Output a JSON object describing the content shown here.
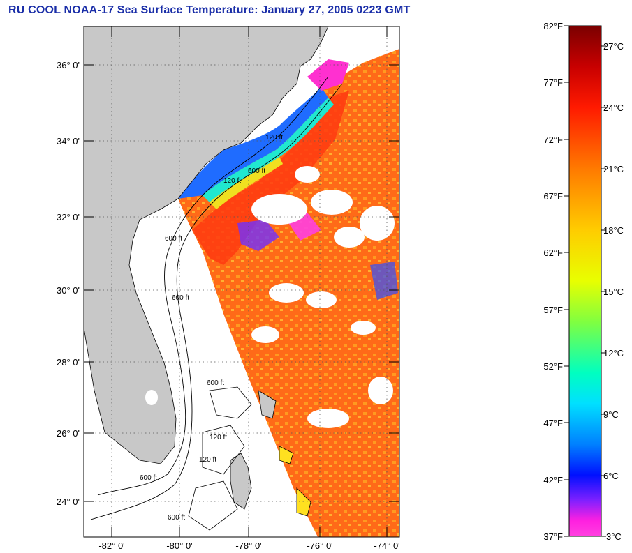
{
  "title": "RU COOL  NOAA-17  Sea Surface Temperature:  January 27, 2005 0223 GMT",
  "map": {
    "lat_ticks": [
      "36° 0'",
      "34° 0'",
      "32° 0'",
      "30° 0'",
      "28° 0'",
      "26° 0'",
      "24° 0'"
    ],
    "lon_ticks": [
      "-82° 0'",
      "-80° 0'",
      "-78° 0'",
      "-76° 0'",
      "-74° 0'"
    ],
    "contour_labels": [
      "120 ft",
      "600 ft",
      "120 ft",
      "600 ft",
      "600 ft",
      "120 ft",
      "600 ft",
      "600 ft",
      "120 ft",
      "600 ft"
    ]
  },
  "colorbar": {
    "fahrenheit": [
      "82°F",
      "77°F",
      "72°F",
      "67°F",
      "62°F",
      "57°F",
      "52°F",
      "47°F",
      "42°F",
      "37°F"
    ],
    "celsius": [
      "27°C",
      "24°C",
      "21°C",
      "18°C",
      "15°C",
      "12°C",
      "9°C",
      "6°C",
      "3°C"
    ]
  },
  "colors": {
    "title": "#1a2ea8",
    "land": "#c8c8c8",
    "warm_sst": "#ff5a10",
    "gulf_stream": "#ff3a10",
    "cold_shelf": "#2070ff"
  }
}
